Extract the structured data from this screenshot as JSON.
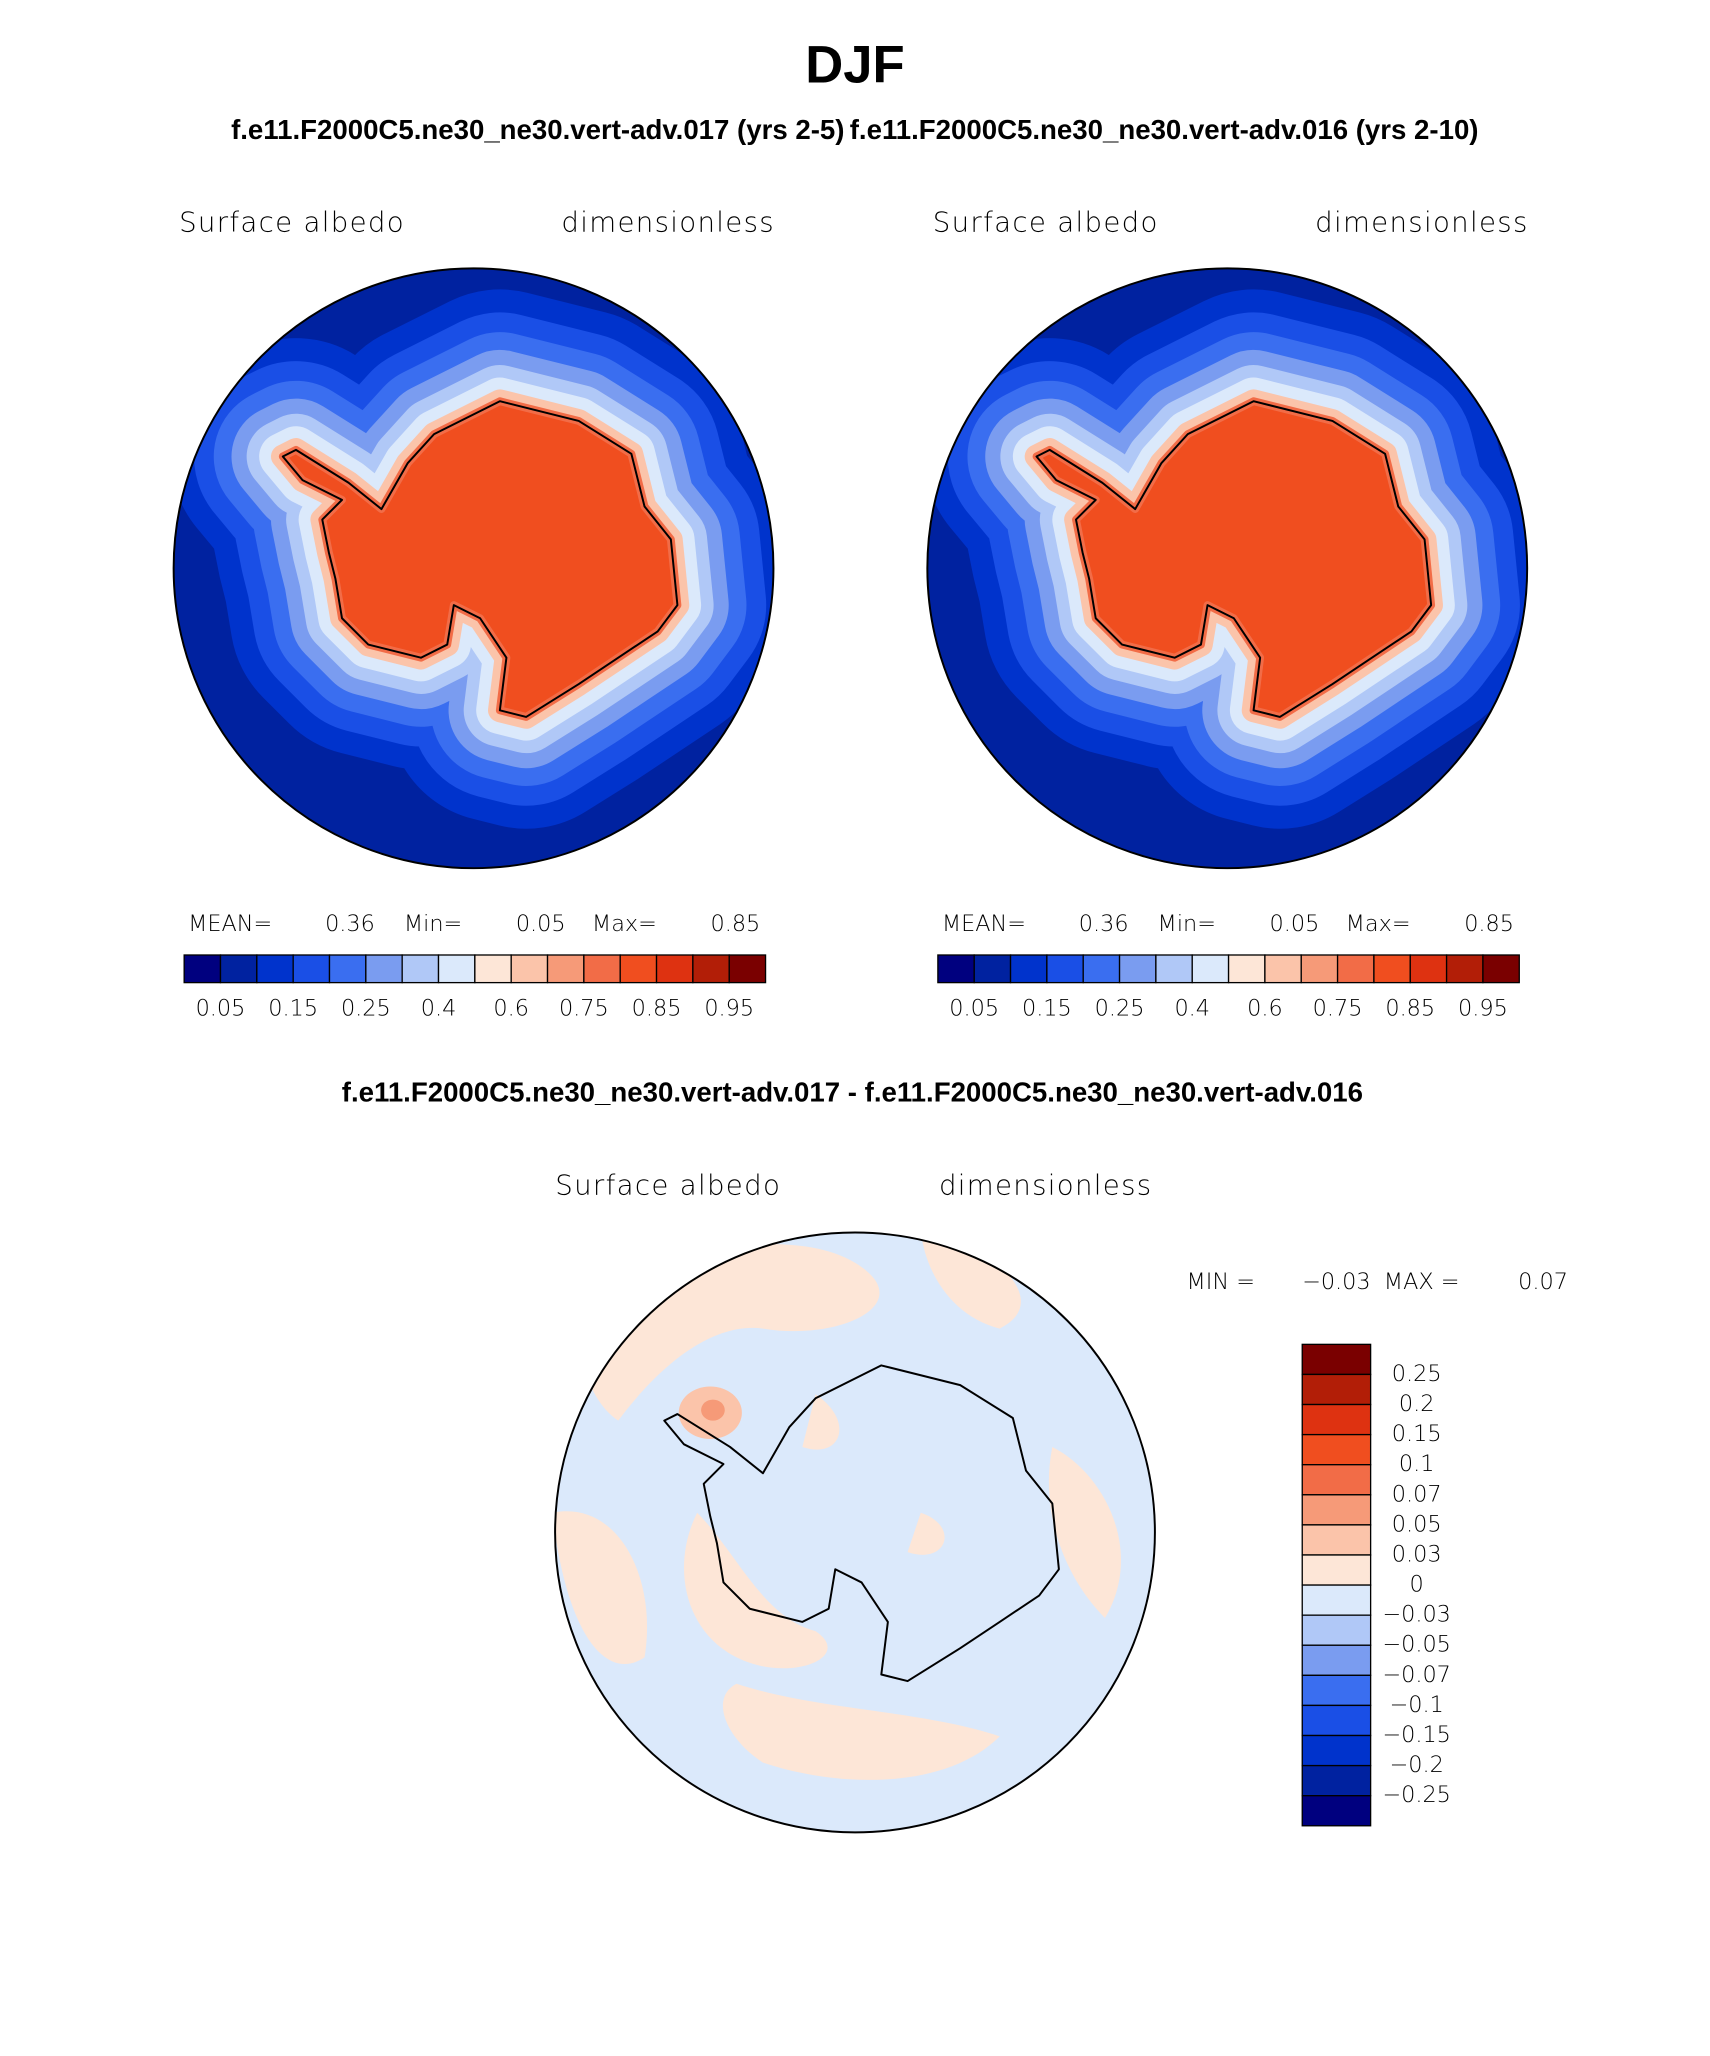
{
  "title": "DJF",
  "subtitle_left": "f.e11.F2000C5.ne30_ne30.vert-adv.017 (yrs 2-5)",
  "subtitle_right": "f.e11.F2000C5.ne30_ne30.vert-adv.016 (yrs 2-10)",
  "panels": [
    {
      "left_label": "Surface albedo",
      "right_label": "dimensionless",
      "stats": [
        {
          "label": "MEAN=",
          "value": "0.36"
        },
        {
          "label": "Min=",
          "value": "0.05"
        },
        {
          "label": "Max=",
          "value": "0.85"
        }
      ],
      "colorbar": {
        "colors": [
          "#00007f",
          "#0022a0",
          "#0033cc",
          "#1a4fe6",
          "#3a6ef0",
          "#7a9cf0",
          "#b0c8f7",
          "#dbe9fb",
          "#fde6d7",
          "#fbc4aa",
          "#f69a78",
          "#f26c47",
          "#f04e1f",
          "#de3211",
          "#b21e07",
          "#7a0000"
        ],
        "labels": [
          "0.05",
          "0.15",
          "0.25",
          "0.4",
          "0.6",
          "0.75",
          "0.85",
          "0.95"
        ]
      }
    },
    {
      "left_label": "Surface albedo",
      "right_label": "dimensionless",
      "stats": [
        {
          "label": "MEAN=",
          "value": "0.36"
        },
        {
          "label": "Min=",
          "value": "0.05"
        },
        {
          "label": "Max=",
          "value": "0.85"
        }
      ],
      "colorbar": {
        "colors": [
          "#00007f",
          "#0022a0",
          "#0033cc",
          "#1a4fe6",
          "#3a6ef0",
          "#7a9cf0",
          "#b0c8f7",
          "#dbe9fb",
          "#fde6d7",
          "#fbc4aa",
          "#f69a78",
          "#f26c47",
          "#f04e1f",
          "#de3211",
          "#b21e07",
          "#7a0000"
        ],
        "labels": [
          "0.05",
          "0.15",
          "0.25",
          "0.4",
          "0.6",
          "0.75",
          "0.85",
          "0.95"
        ]
      }
    }
  ],
  "difference": {
    "title": "f.e11.F2000C5.ne30_ne30.vert-adv.017 - f.e11.F2000C5.ne30_ne30.vert-adv.016",
    "left_label": "Surface albedo",
    "right_label": "dimensionless",
    "stats": [
      {
        "label": "MIN =",
        "value": "−0.03"
      },
      {
        "label": "MAX =",
        "value": "0.07"
      }
    ],
    "colorbar": {
      "colors": [
        "#7a0000",
        "#b21e07",
        "#de3211",
        "#f04e1f",
        "#f26c47",
        "#f69a78",
        "#fbc4aa",
        "#fde6d7",
        "#dbe9fb",
        "#b0c8f7",
        "#7a9cf0",
        "#3a6ef0",
        "#1a4fe6",
        "#0033cc",
        "#0022a0",
        "#00007f"
      ],
      "labels": [
        "0.25",
        "0.2",
        "0.15",
        "0.1",
        "0.07",
        "0.05",
        "0.03",
        "0",
        "−0.03",
        "−0.05",
        "−0.07",
        "−0.1",
        "−0.15",
        "−0.2",
        "−0.25"
      ]
    }
  }
}
